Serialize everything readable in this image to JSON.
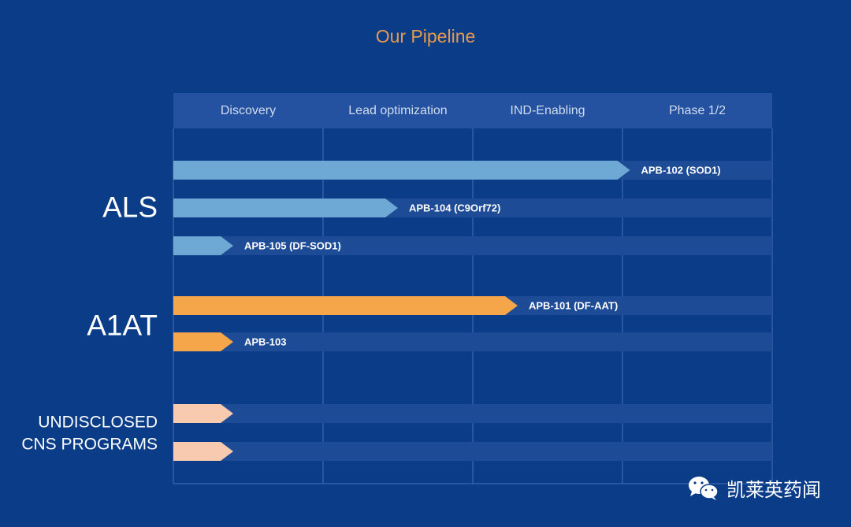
{
  "title": "Our Pipeline",
  "watermark": {
    "text": "凯莱英药闻",
    "icon": "wechat-icon"
  },
  "colors": {
    "background": "#0b3c88",
    "header": "#2452a0",
    "track": "#1d4b96",
    "grid": "#3b65ab",
    "als": "#6ea8d4",
    "a1at": "#f5a54a",
    "undisclosed": "#f8cbb1",
    "title": "#e79a4d"
  },
  "chart_data": {
    "type": "bar",
    "orientation": "horizontal",
    "title": "Our Pipeline",
    "phases": [
      "Discovery",
      "Lead optimization",
      "IND-Enabling",
      "Phase 1/2"
    ],
    "xlim": [
      0,
      4
    ],
    "groups": [
      {
        "name": "ALS",
        "lines": [
          "ALS"
        ],
        "color_key": "als",
        "programs": [
          {
            "label": "APB-102 (SOD1)",
            "progress": 3.05
          },
          {
            "label": "APB-104 (C9Orf72)",
            "progress": 1.5
          },
          {
            "label": "APB-105 (DF-SOD1)",
            "progress": 0.4
          }
        ]
      },
      {
        "name": "A1AT",
        "lines": [
          "A1AT"
        ],
        "color_key": "a1at",
        "programs": [
          {
            "label": "APB-101 (DF-AAT)",
            "progress": 2.3
          },
          {
            "label": "APB-103",
            "progress": 0.4
          }
        ]
      },
      {
        "name": "UNDISCLOSED CNS PROGRAMS",
        "lines": [
          "UNDISCLOSED",
          "CNS PROGRAMS"
        ],
        "color_key": "undisclosed",
        "programs": [
          {
            "label": "",
            "progress": 0.4
          },
          {
            "label": "",
            "progress": 0.4
          }
        ]
      }
    ],
    "grid": true
  }
}
